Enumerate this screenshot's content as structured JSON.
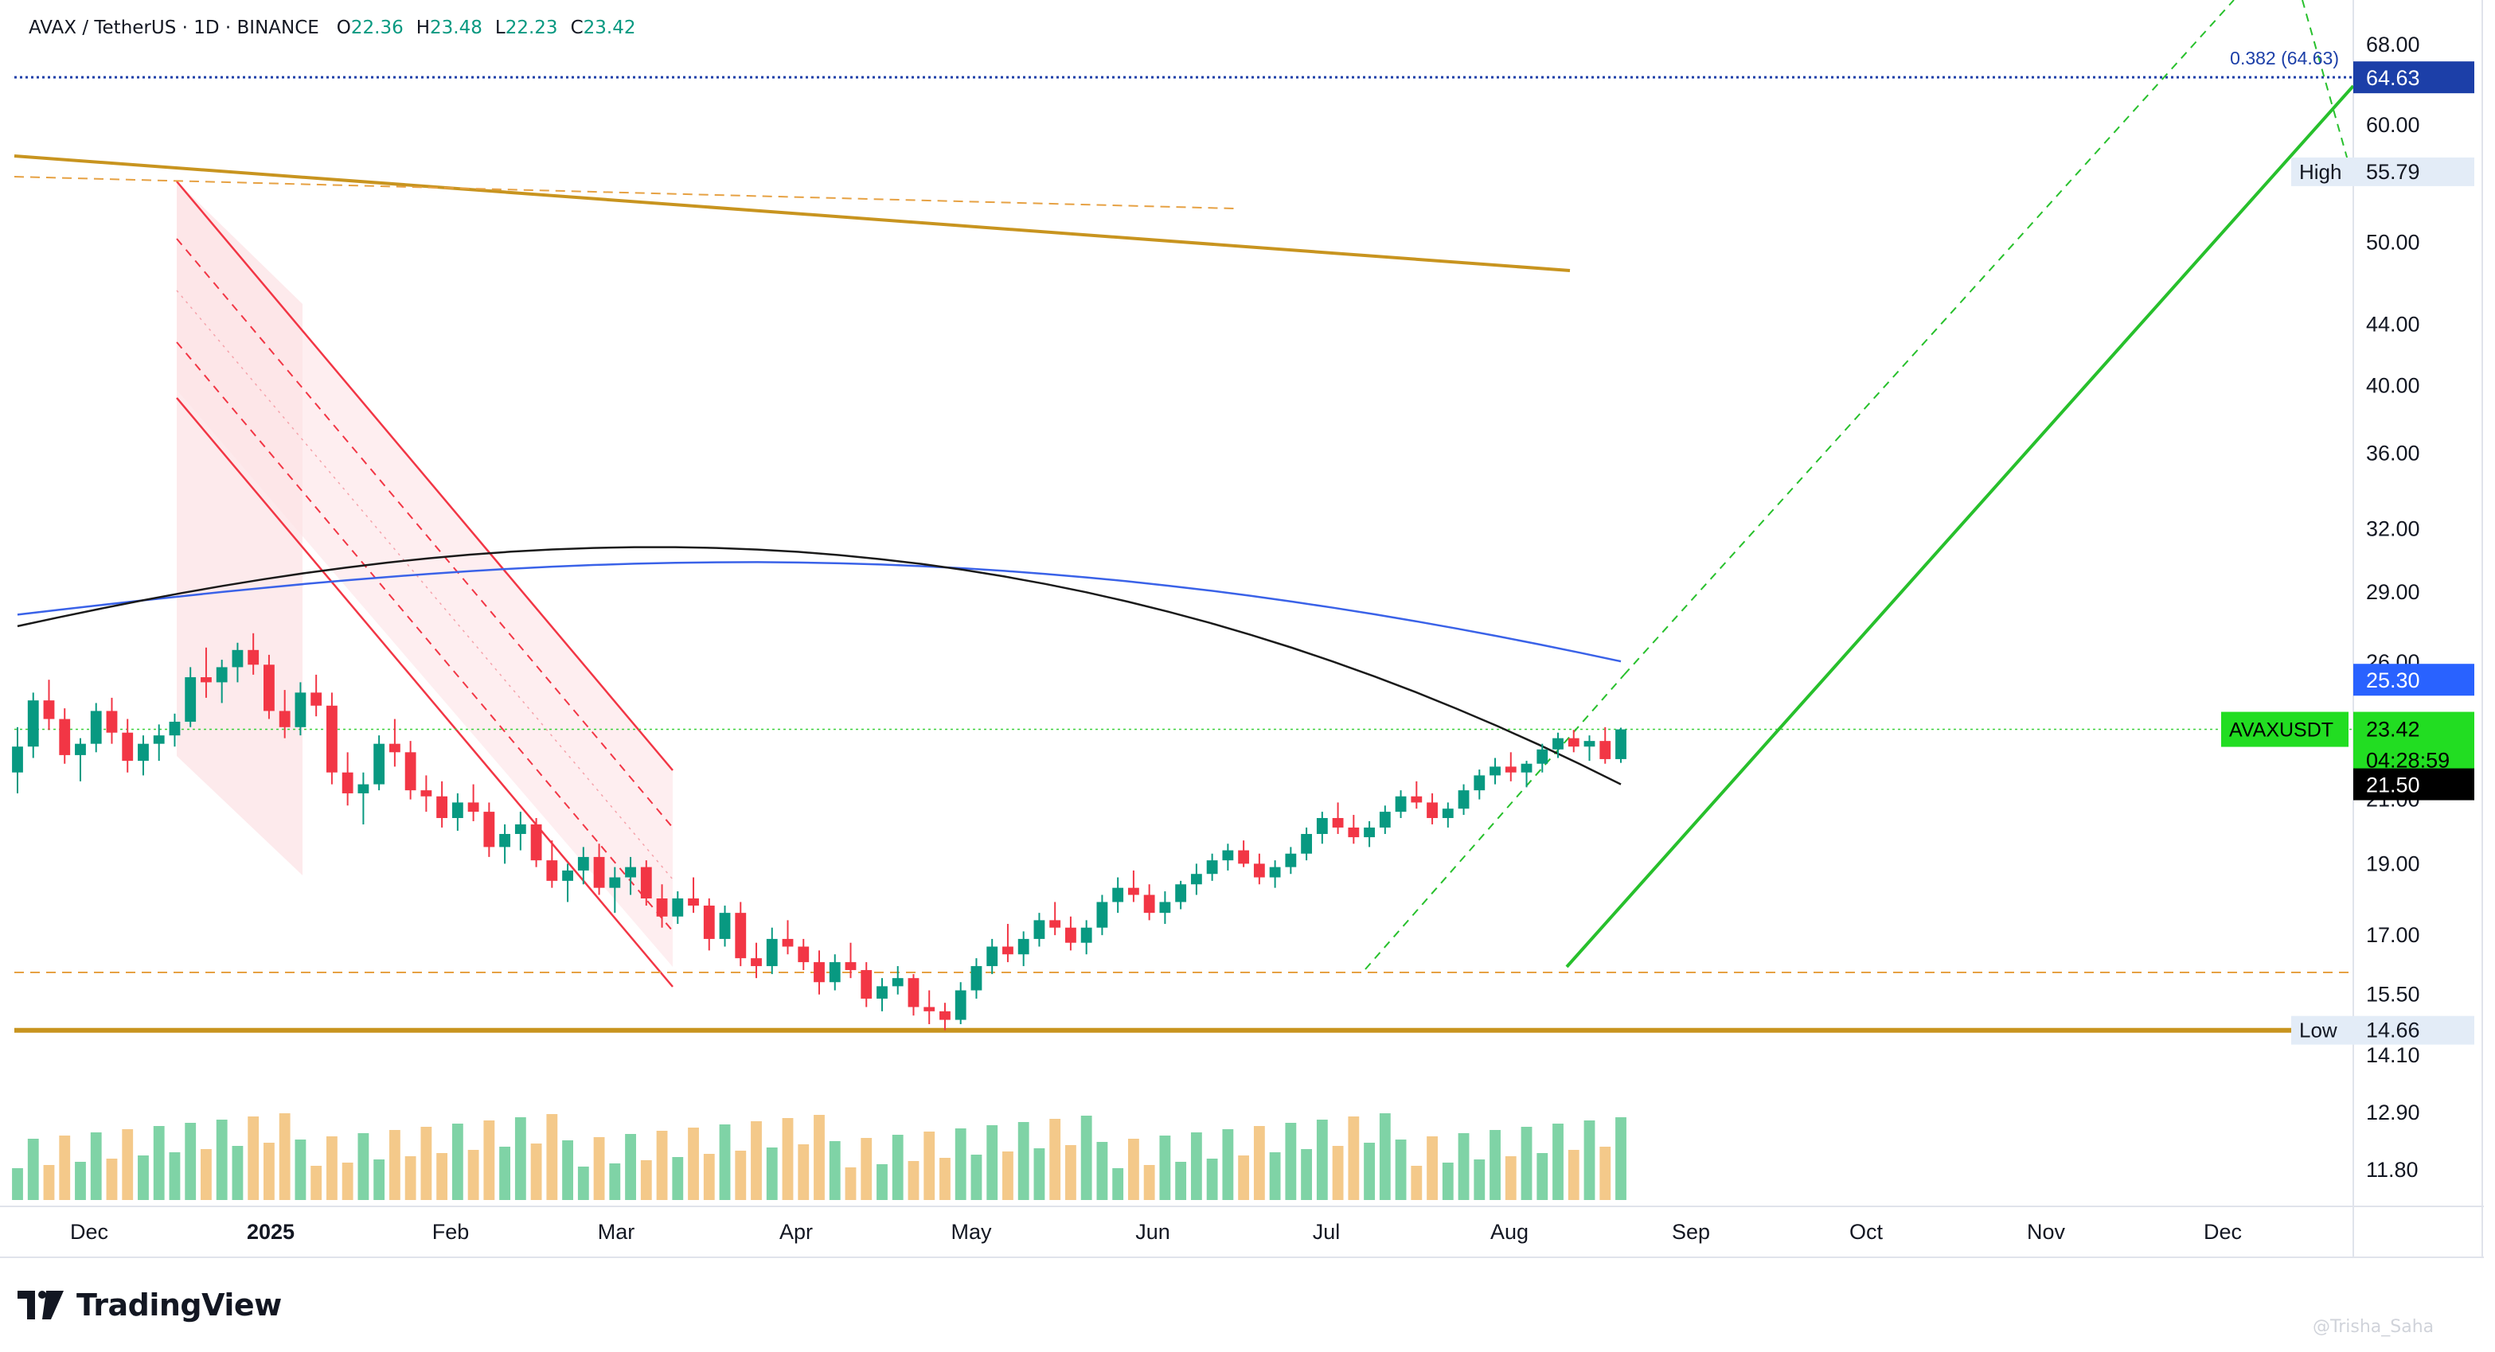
{
  "header": {
    "symbol_line": "AVAX / TetherUS · 1D · BINANCE",
    "open_label": "O",
    "open": "22.36",
    "high_label": "H",
    "high": "23.48",
    "low_label": "L",
    "low": "22.23",
    "close_label": "C",
    "close": "23.42"
  },
  "brand": {
    "name": "TradingView"
  },
  "watermark": "@Trisha_Saha",
  "chart_data": {
    "type": "candlestick",
    "scale": "log",
    "x_axis_labels": [
      "Dec",
      "2025",
      "Feb",
      "Mar",
      "Apr",
      "May",
      "Jun",
      "Jul",
      "Aug",
      "Sep",
      "Oct",
      "Nov",
      "Dec"
    ],
    "y_axis_ticks": [
      "68.00",
      "60.00",
      "50.00",
      "44.00",
      "40.00",
      "36.00",
      "32.00",
      "29.00",
      "26.00",
      "21.00",
      "19.00",
      "17.00",
      "15.50",
      "14.10",
      "12.90",
      "11.80"
    ],
    "y_range": [
      11.2,
      72.0
    ],
    "price_tags": [
      {
        "value": 64.63,
        "text": "64.63",
        "color": "#1c3fa8"
      },
      {
        "value": 25.3,
        "text": "25.30",
        "color": "#2962ff"
      },
      {
        "value": 23.42,
        "text": "23.42",
        "color": "#22dd22",
        "symbol": "AVAXUSDT",
        "countdown": "04:28:59"
      },
      {
        "value": 21.5,
        "text": "21.50",
        "color": "#000000"
      }
    ],
    "high_marker": {
      "label": "High",
      "value": 55.79,
      "text": "55.79"
    },
    "low_marker": {
      "label": "Low",
      "value": 14.66,
      "text": "14.66"
    },
    "fib_label": "0.382 (64.63)",
    "candles_approx": [
      [
        21.9,
        23.5,
        21.2,
        22.8
      ],
      [
        22.8,
        24.8,
        22.4,
        24.5
      ],
      [
        24.5,
        25.3,
        23.4,
        23.8
      ],
      [
        23.8,
        24.2,
        22.2,
        22.5
      ],
      [
        22.5,
        23.1,
        21.6,
        22.9
      ],
      [
        22.9,
        24.4,
        22.6,
        24.1
      ],
      [
        24.1,
        24.6,
        22.9,
        23.3
      ],
      [
        23.3,
        23.8,
        21.9,
        22.3
      ],
      [
        22.3,
        23.2,
        21.8,
        22.9
      ],
      [
        22.9,
        23.6,
        22.3,
        23.2
      ],
      [
        23.2,
        24.0,
        22.8,
        23.7
      ],
      [
        23.7,
        25.8,
        23.5,
        25.4
      ],
      [
        25.4,
        26.6,
        24.6,
        25.2
      ],
      [
        25.2,
        26.1,
        24.4,
        25.8
      ],
      [
        25.8,
        26.8,
        25.2,
        26.5
      ],
      [
        26.5,
        27.2,
        25.5,
        25.9
      ],
      [
        25.9,
        26.3,
        23.8,
        24.1
      ],
      [
        24.1,
        24.9,
        23.1,
        23.5
      ],
      [
        23.5,
        25.2,
        23.2,
        24.8
      ],
      [
        24.8,
        25.5,
        23.9,
        24.3
      ],
      [
        24.3,
        24.8,
        21.5,
        21.9
      ],
      [
        21.9,
        22.6,
        20.8,
        21.2
      ],
      [
        21.2,
        21.9,
        20.2,
        21.5
      ],
      [
        21.5,
        23.2,
        21.3,
        22.9
      ],
      [
        22.9,
        23.8,
        22.1,
        22.6
      ],
      [
        22.6,
        23.0,
        21.0,
        21.3
      ],
      [
        21.3,
        21.8,
        20.6,
        21.1
      ],
      [
        21.1,
        21.6,
        20.1,
        20.4
      ],
      [
        20.4,
        21.2,
        20.0,
        20.9
      ],
      [
        20.9,
        21.5,
        20.3,
        20.6
      ],
      [
        20.6,
        20.9,
        19.2,
        19.5
      ],
      [
        19.5,
        20.2,
        19.0,
        19.9
      ],
      [
        19.9,
        20.6,
        19.4,
        20.2
      ],
      [
        20.2,
        20.4,
        18.9,
        19.1
      ],
      [
        19.1,
        19.7,
        18.3,
        18.5
      ],
      [
        18.5,
        19.0,
        17.9,
        18.8
      ],
      [
        18.8,
        19.5,
        18.4,
        19.2
      ],
      [
        19.2,
        19.6,
        18.1,
        18.3
      ],
      [
        18.3,
        18.9,
        17.6,
        18.6
      ],
      [
        18.6,
        19.2,
        18.1,
        18.9
      ],
      [
        18.9,
        19.1,
        17.8,
        18.0
      ],
      [
        18.0,
        18.4,
        17.2,
        17.5
      ],
      [
        17.5,
        18.2,
        17.3,
        18.0
      ],
      [
        18.0,
        18.6,
        17.6,
        17.8
      ],
      [
        17.8,
        18.0,
        16.6,
        16.9
      ],
      [
        16.9,
        17.8,
        16.7,
        17.6
      ],
      [
        17.6,
        17.9,
        16.2,
        16.4
      ],
      [
        16.4,
        16.8,
        15.9,
        16.2
      ],
      [
        16.2,
        17.2,
        16.0,
        16.9
      ],
      [
        16.9,
        17.4,
        16.5,
        16.7
      ],
      [
        16.7,
        16.9,
        16.1,
        16.3
      ],
      [
        16.3,
        16.6,
        15.5,
        15.8
      ],
      [
        15.8,
        16.5,
        15.6,
        16.3
      ],
      [
        16.3,
        16.8,
        15.9,
        16.1
      ],
      [
        16.1,
        16.3,
        15.2,
        15.4
      ],
      [
        15.4,
        15.9,
        15.1,
        15.7
      ],
      [
        15.7,
        16.2,
        15.5,
        15.9
      ],
      [
        15.9,
        16.0,
        15.0,
        15.2
      ],
      [
        15.2,
        15.6,
        14.8,
        15.1
      ],
      [
        15.1,
        15.3,
        14.66,
        14.9
      ],
      [
        14.9,
        15.8,
        14.8,
        15.6
      ],
      [
        15.6,
        16.4,
        15.4,
        16.2
      ],
      [
        16.2,
        16.9,
        16.0,
        16.7
      ],
      [
        16.7,
        17.3,
        16.3,
        16.5
      ],
      [
        16.5,
        17.1,
        16.2,
        16.9
      ],
      [
        16.9,
        17.6,
        16.7,
        17.4
      ],
      [
        17.4,
        17.9,
        17.0,
        17.2
      ],
      [
        17.2,
        17.5,
        16.6,
        16.8
      ],
      [
        16.8,
        17.4,
        16.5,
        17.2
      ],
      [
        17.2,
        18.1,
        17.0,
        17.9
      ],
      [
        17.9,
        18.6,
        17.6,
        18.3
      ],
      [
        18.3,
        18.8,
        17.9,
        18.1
      ],
      [
        18.1,
        18.4,
        17.4,
        17.6
      ],
      [
        17.6,
        18.2,
        17.3,
        17.9
      ],
      [
        17.9,
        18.5,
        17.7,
        18.4
      ],
      [
        18.4,
        19.0,
        18.1,
        18.7
      ],
      [
        18.7,
        19.3,
        18.5,
        19.1
      ],
      [
        19.1,
        19.6,
        18.8,
        19.4
      ],
      [
        19.4,
        19.7,
        18.9,
        19.0
      ],
      [
        19.0,
        19.3,
        18.4,
        18.6
      ],
      [
        18.6,
        19.1,
        18.3,
        18.9
      ],
      [
        18.9,
        19.5,
        18.7,
        19.3
      ],
      [
        19.3,
        20.1,
        19.1,
        19.9
      ],
      [
        19.9,
        20.6,
        19.6,
        20.4
      ],
      [
        20.4,
        20.9,
        19.9,
        20.1
      ],
      [
        20.1,
        20.5,
        19.6,
        19.8
      ],
      [
        19.8,
        20.3,
        19.5,
        20.1
      ],
      [
        20.1,
        20.8,
        19.9,
        20.6
      ],
      [
        20.6,
        21.3,
        20.4,
        21.1
      ],
      [
        21.1,
        21.6,
        20.7,
        20.9
      ],
      [
        20.9,
        21.2,
        20.2,
        20.4
      ],
      [
        20.4,
        20.9,
        20.1,
        20.7
      ],
      [
        20.7,
        21.5,
        20.5,
        21.3
      ],
      [
        21.3,
        22.0,
        21.0,
        21.8
      ],
      [
        21.8,
        22.4,
        21.5,
        22.1
      ],
      [
        22.1,
        22.6,
        21.6,
        21.9
      ],
      [
        21.9,
        22.3,
        21.4,
        22.2
      ],
      [
        22.2,
        22.9,
        21.9,
        22.7
      ],
      [
        22.7,
        23.3,
        22.4,
        23.1
      ],
      [
        23.1,
        23.4,
        22.6,
        22.8
      ],
      [
        22.8,
        23.2,
        22.3,
        23.0
      ],
      [
        23.0,
        23.5,
        22.2,
        22.36
      ],
      [
        22.36,
        23.48,
        22.23,
        23.42
      ]
    ],
    "series": [
      {
        "kind": "sma",
        "color": "#3a62e8"
      },
      {
        "kind": "sma",
        "color": "#1a1a1a"
      }
    ]
  }
}
